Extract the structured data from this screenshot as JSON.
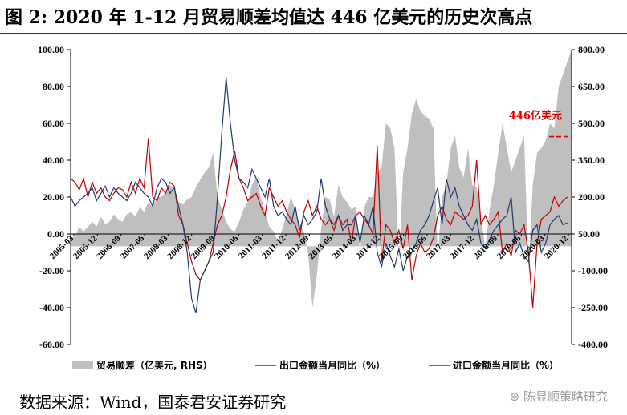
{
  "title": "图 2: 2020 年 1-12 月贸易顺差均值达 446 亿美元的历史次高点",
  "source": "数据来源：Wind，国泰君安证券研究",
  "watermark": "陈显顺策略研究",
  "chart_data": {
    "type": "line",
    "x_tick_labels": [
      "2005-03",
      "2005-12",
      "2006-09",
      "2007-06",
      "2008-03",
      "2008-12",
      "2009-09",
      "2010-06",
      "2011-03",
      "2011-12",
      "2012-09",
      "2013-06",
      "2014-03",
      "2014-12",
      "2015-09",
      "2016-06",
      "2017-03",
      "2017-12",
      "2018-09",
      "2019-06",
      "2020-03",
      "2020-12"
    ],
    "y_left": {
      "ticks": [
        "100.00",
        "80.00",
        "60.00",
        "40.00",
        "20.00",
        "0.00",
        "-20.00",
        "-40.00",
        "-60.00"
      ],
      "min": -60,
      "max": 100
    },
    "y_right": {
      "ticks": [
        "800.00",
        "650.00",
        "500.00",
        "350.00",
        "200.00",
        "50.00",
        "-100.00",
        "-250.00",
        "-400.00"
      ],
      "min": -400,
      "max": 800
    },
    "annotation": {
      "text": "446亿美元",
      "value": 446,
      "color": "#e00000"
    },
    "colors": {
      "area": "#bfbfbf",
      "export": "#c00000",
      "import": "#1f3b6e"
    },
    "series": [
      {
        "name": "贸易顺差（亿美元, RHS）",
        "axis": "right",
        "kind": "area",
        "values": [
          30,
          40,
          80,
          60,
          80,
          100,
          80,
          120,
          90,
          100,
          130,
          110,
          100,
          130,
          140,
          120,
          160,
          140,
          180,
          160,
          200,
          200,
          220,
          250,
          230,
          180,
          170,
          190,
          200,
          240,
          270,
          300,
          320,
          380,
          200,
          150,
          100,
          70,
          60,
          100,
          150,
          180,
          250,
          280,
          200,
          140,
          80,
          60,
          20,
          70,
          130,
          200,
          150,
          90,
          60,
          -30,
          -250,
          -120,
          70,
          200,
          190,
          120,
          250,
          200,
          180,
          150,
          160,
          -30,
          160,
          200,
          200,
          300,
          320,
          500,
          480,
          400,
          -60,
          300,
          400,
          540,
          600,
          550,
          530,
          520,
          480,
          -50,
          200,
          250,
          400,
          450,
          320,
          280,
          400,
          250,
          240,
          130,
          -10,
          150,
          250,
          380,
          500,
          400,
          300,
          350,
          400,
          450,
          -100,
          250,
          380,
          400,
          430,
          500,
          480,
          650,
          700,
          750,
          800
        ]
      },
      {
        "name": "出口金额当月同比（%）",
        "axis": "left",
        "kind": "line",
        "values": [
          30,
          28,
          24,
          30,
          20,
          28,
          22,
          25,
          20,
          18,
          22,
          25,
          24,
          20,
          28,
          22,
          30,
          25,
          52,
          20,
          18,
          25,
          22,
          28,
          26,
          10,
          5,
          -5,
          -15,
          -22,
          -25,
          -20,
          -15,
          -5,
          5,
          10,
          20,
          35,
          45,
          30,
          25,
          18,
          20,
          22,
          15,
          10,
          25,
          20,
          15,
          18,
          12,
          8,
          5,
          -2,
          12,
          18,
          10,
          15,
          8,
          5,
          8,
          2,
          10,
          5,
          8,
          -5,
          10,
          12,
          8,
          5,
          0,
          48,
          -15,
          5,
          2,
          -5,
          2,
          -8,
          5,
          -25,
          -12,
          -5,
          -10,
          -8,
          -2,
          10,
          15,
          8,
          5,
          12,
          10,
          8,
          10,
          15,
          40,
          5,
          10,
          5,
          8,
          12,
          -10,
          -5,
          -12,
          2,
          0,
          5,
          -10,
          -40,
          -5,
          8,
          10,
          12,
          20,
          15,
          18,
          20
        ]
      },
      {
        "name": "进口金额当月同比（%）",
        "axis": "left",
        "kind": "line",
        "values": [
          20,
          15,
          18,
          20,
          22,
          25,
          18,
          22,
          26,
          20,
          25,
          22,
          20,
          18,
          22,
          28,
          25,
          22,
          20,
          15,
          25,
          30,
          28,
          22,
          25,
          15,
          5,
          -10,
          -35,
          -43,
          -25,
          -20,
          -15,
          -10,
          20,
          55,
          85,
          60,
          40,
          30,
          28,
          25,
          35,
          30,
          25,
          20,
          30,
          15,
          10,
          12,
          8,
          5,
          15,
          2,
          10,
          5,
          8,
          12,
          30,
          15,
          8,
          5,
          10,
          2,
          5,
          5,
          10,
          -5,
          10,
          5,
          15,
          -10,
          -18,
          -5,
          -12,
          -18,
          -8,
          -20,
          -12,
          -10,
          -5,
          2,
          5,
          10,
          18,
          25,
          5,
          30,
          20,
          25,
          15,
          10,
          5,
          2,
          8,
          -5,
          -8,
          -3,
          2,
          5,
          8,
          10,
          20,
          -10,
          -5,
          -12,
          -15,
          2,
          5,
          -10,
          -5,
          5,
          8,
          10,
          5,
          6
        ]
      }
    ],
    "legend": [
      {
        "label": "贸易顺差（亿美元, RHS）"
      },
      {
        "label": "出口金额当月同比（%）"
      },
      {
        "label": "进口金额当月同比（%）"
      }
    ],
    "legend_position": "bottom"
  }
}
